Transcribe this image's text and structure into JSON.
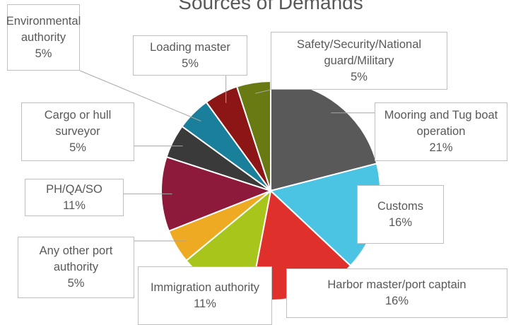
{
  "chart_data": {
    "type": "pie",
    "title": "Sources of Demands",
    "categories": [
      "Mooring and Tug boat operation",
      "Customs",
      "Harbor master/port captain",
      "Immigration authority",
      "Any other port authority",
      "PH/QA/SO",
      "Cargo or hull surveyor",
      "Environmental authority",
      "Loading master",
      "Safety/Security/National guard/Military"
    ],
    "values": [
      21,
      16,
      16,
      11,
      5,
      11,
      5,
      5,
      5,
      5
    ],
    "value_labels": [
      "21%",
      "16%",
      "16%",
      "11%",
      "5%",
      "11%",
      "5%",
      "5%",
      "5%",
      "5%"
    ],
    "colors": [
      "#595959",
      "#4bc3e2",
      "#e0302c",
      "#a7c51b",
      "#edaa22",
      "#8e1a3b",
      "#3a3a3a",
      "#1a7f9b",
      "#8c1515",
      "#6a7a12"
    ]
  }
}
